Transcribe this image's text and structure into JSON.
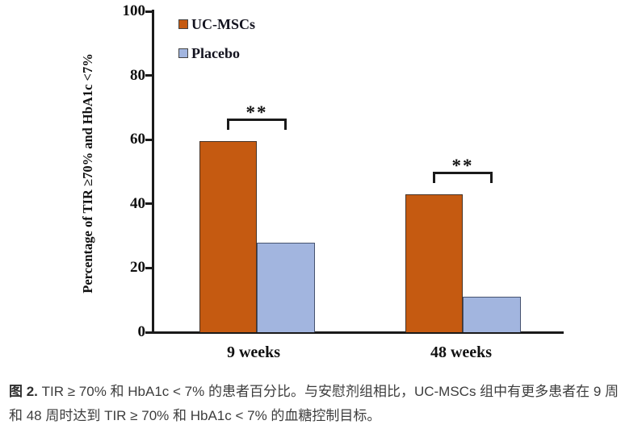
{
  "figure": {
    "caption_label": "图 2.",
    "caption_text": " TIR ≥ 70% 和 HbA1c < 7% 的患者百分比。与安慰剂组相比，UC-MSCs 组中有更多患者在 9 周和 48 周时达到 TIR ≥ 70% 和 HbA1c < 7% 的血糖控制目标。"
  },
  "chart_data": {
    "type": "bar",
    "title": "",
    "categories": [
      "9 weeks",
      "48 weeks"
    ],
    "series": [
      {
        "name": "UC-MSCs",
        "color": "#C55A11",
        "edge_color": "#463327",
        "values": [
          59.5,
          42.9
        ]
      },
      {
        "name": "Placebo",
        "color": "#A2B5DF",
        "edge_color": "#46536f",
        "values": [
          27.8,
          11.1
        ]
      }
    ],
    "xlabel": "",
    "ylabel": "Percentage of TIR ≥70% and HbA1c <7%",
    "ylim": [
      0,
      100
    ],
    "yticks": [
      0,
      20,
      40,
      60,
      80,
      100
    ],
    "grid": false,
    "legend_position": "top-left-inside",
    "annotations": [
      {
        "category": "9 weeks",
        "between": [
          "UC-MSCs",
          "Placebo"
        ],
        "text": "**"
      },
      {
        "category": "48 weeks",
        "between": [
          "UC-MSCs",
          "Placebo"
        ],
        "text": "**"
      }
    ],
    "axis_color": "#1a1a1a"
  }
}
